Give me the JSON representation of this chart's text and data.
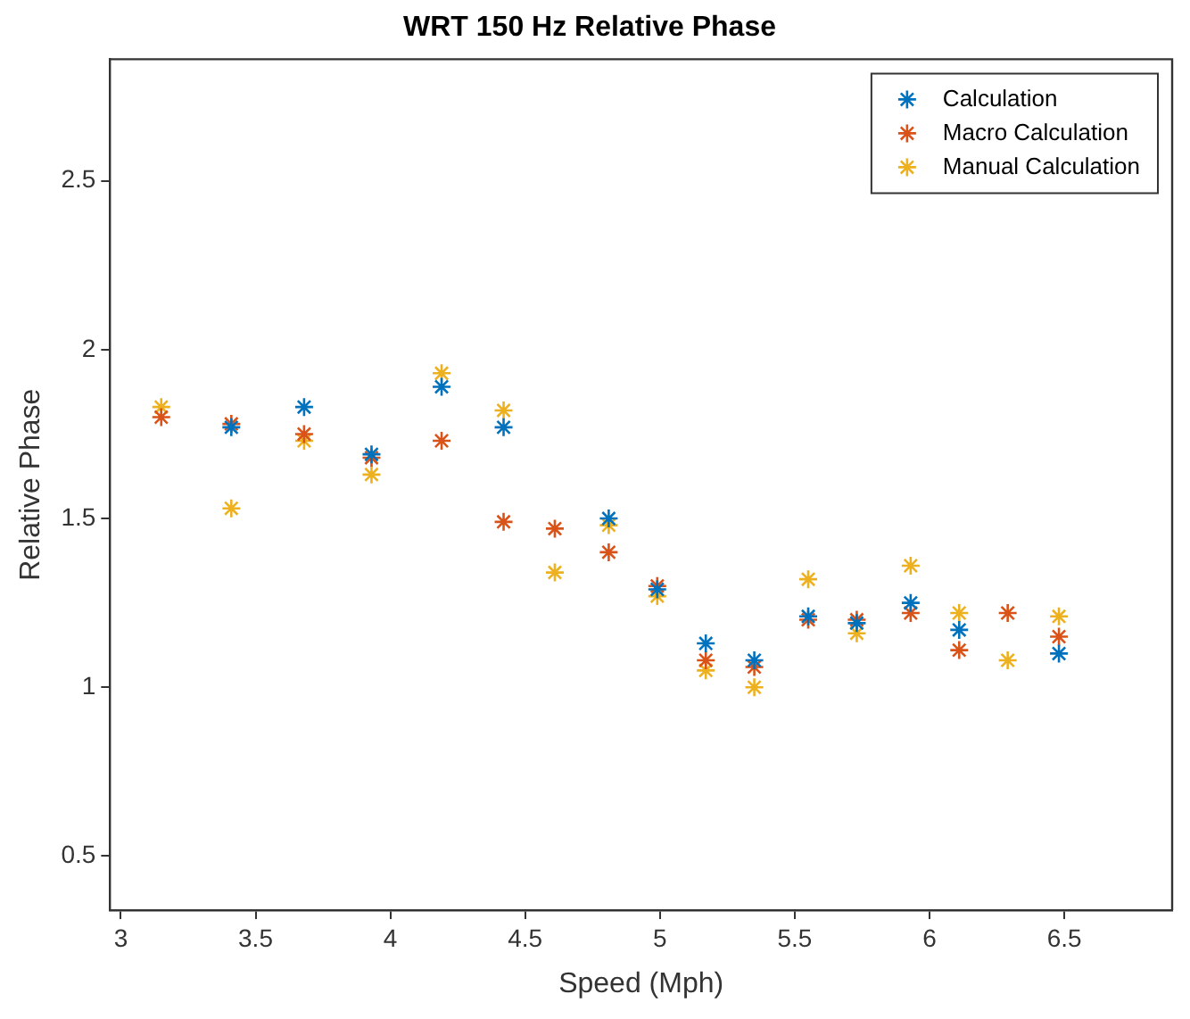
{
  "chart_data": {
    "type": "scatter",
    "title": "WRT 150 Hz Relative Phase",
    "xlabel": "Speed (Mph)",
    "ylabel": "Relative Phase",
    "x": [
      3.15,
      3.41,
      3.68,
      3.93,
      4.19,
      4.42,
      4.61,
      4.81,
      4.99,
      5.17,
      5.35,
      5.55,
      5.73,
      5.93,
      6.11,
      6.29,
      6.48
    ],
    "series": [
      {
        "name": "Calculation",
        "color": "#0072bd",
        "values": [
          null,
          1.77,
          1.83,
          1.69,
          1.89,
          1.77,
          null,
          1.5,
          1.29,
          1.13,
          1.08,
          1.21,
          1.19,
          1.25,
          1.17,
          null,
          1.1
        ]
      },
      {
        "name": "Macro Calculation",
        "color": "#d95319",
        "values": [
          1.8,
          1.78,
          1.75,
          1.68,
          1.73,
          1.49,
          1.47,
          1.4,
          1.3,
          1.08,
          1.06,
          1.2,
          1.2,
          1.22,
          1.11,
          1.22,
          1.15
        ]
      },
      {
        "name": "Manual Calculation",
        "color": "#edb120",
        "values": [
          1.83,
          1.53,
          1.73,
          1.63,
          1.93,
          1.82,
          1.34,
          1.48,
          1.27,
          1.05,
          1.0,
          1.32,
          1.16,
          1.36,
          1.22,
          1.08,
          1.21
        ]
      }
    ],
    "xlim": [
      2.96,
      6.9
    ],
    "xticks": [
      3,
      3.5,
      4,
      4.5,
      5,
      5.5,
      6,
      6.5
    ],
    "ylim": [
      0.34,
      2.86
    ],
    "yticks": [
      0.5,
      1,
      1.5,
      2,
      2.5
    ],
    "marker": "cross",
    "grid": false,
    "legend": "top right"
  }
}
